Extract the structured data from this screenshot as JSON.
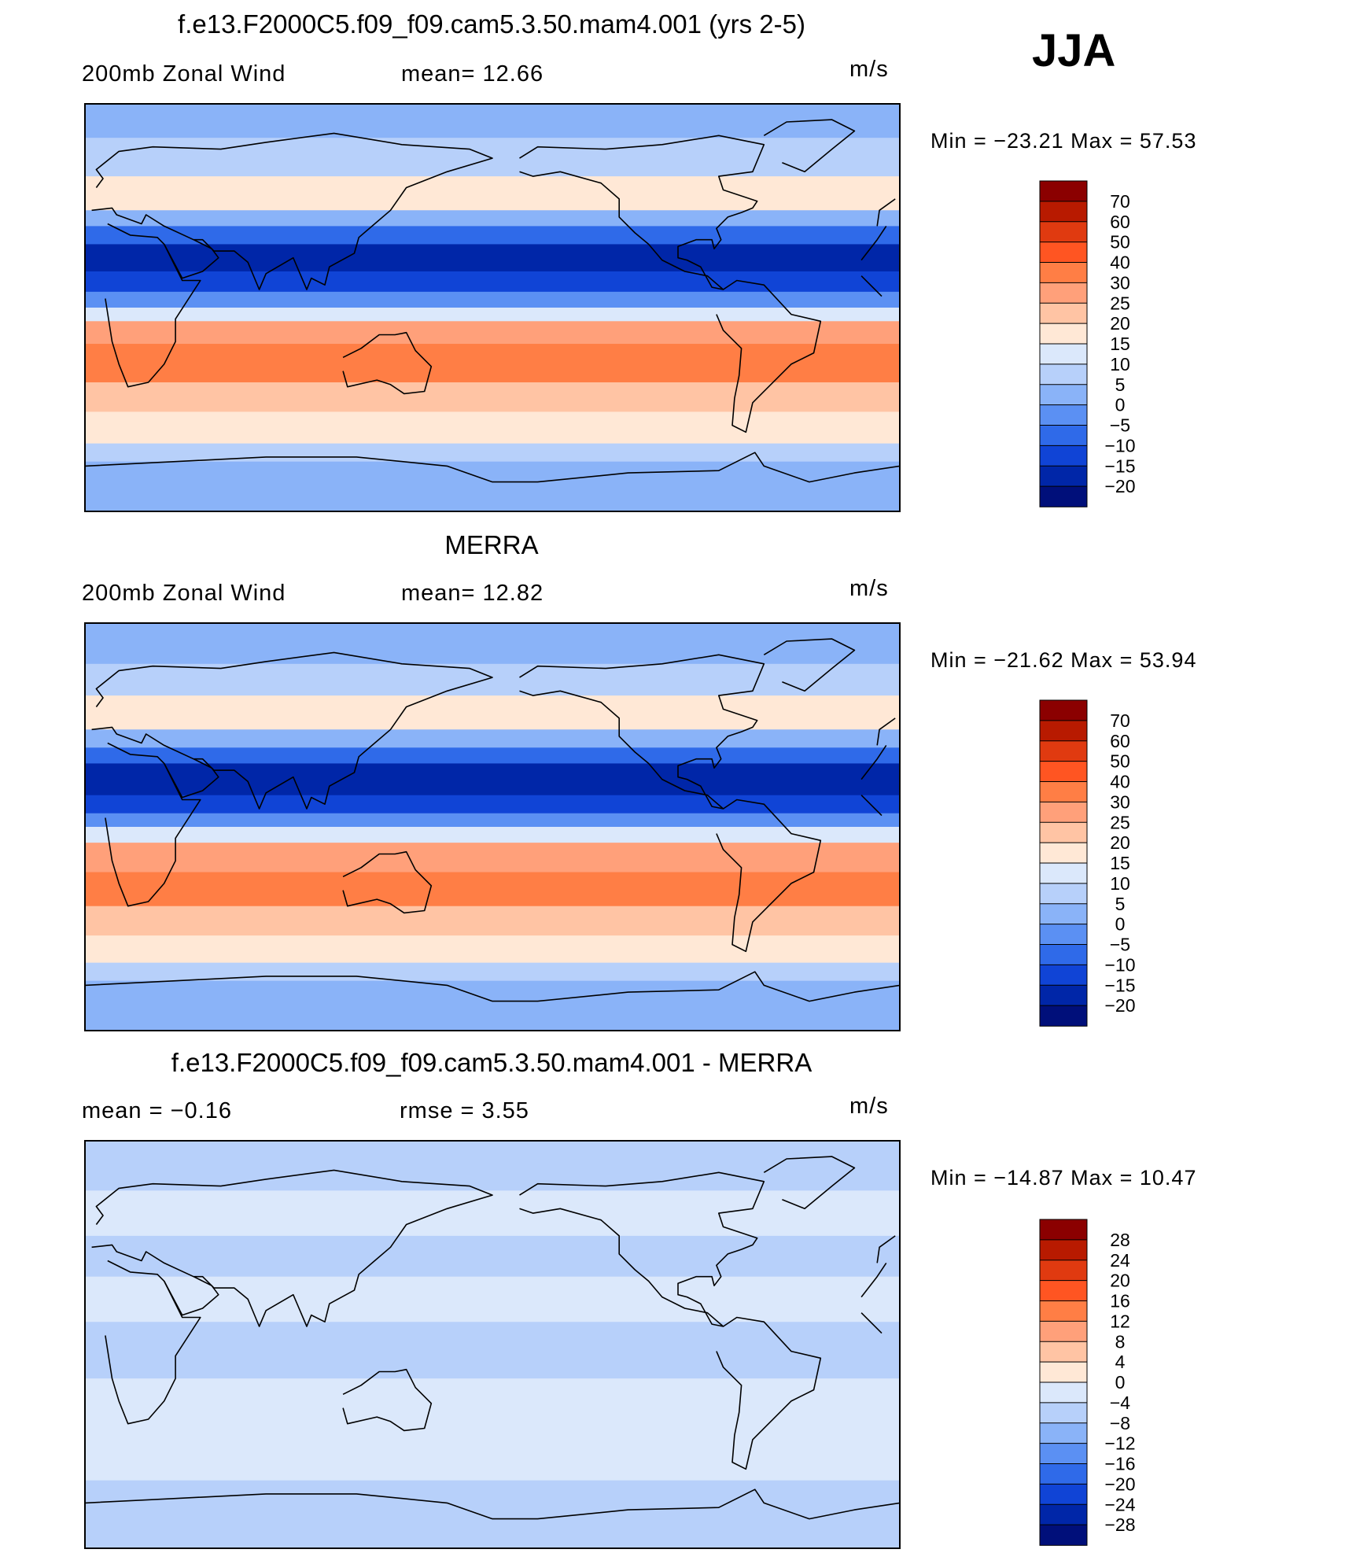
{
  "season": "JJA",
  "panels": [
    {
      "id": "model",
      "title": "f.e13.F2000C5.f09_f09.cam5.3.50.mam4.001 (yrs 2-5)",
      "left_label": "200mb  Zonal  Wind",
      "mid_label": "mean=   12.66",
      "units": "m/s",
      "minmax": "Min  =  −23.21  Max  =    57.53",
      "colorbar": {
        "labels": [
          "70",
          "60",
          "50",
          "40",
          "30",
          "25",
          "20",
          "15",
          "10",
          "5",
          "0",
          "−5",
          "−10",
          "−15",
          "−20"
        ],
        "colors": [
          "#8b0000",
          "#b81a00",
          "#e03a10",
          "#ff5522",
          "#ff7e45",
          "#ffa07a",
          "#ffc4a4",
          "#ffe8d6",
          "#dbe8fb",
          "#b7d0fa",
          "#8ab3f8",
          "#5b90f3",
          "#2f6ae9",
          "#1044d6",
          "#0026a8",
          "#000f7a"
        ]
      },
      "bands": [
        {
          "lat_top": 90,
          "lat_bottom": 75,
          "level": "5"
        },
        {
          "lat_top": 75,
          "lat_bottom": 58,
          "level": "10"
        },
        {
          "lat_top": 58,
          "lat_bottom": 43,
          "level": "20"
        },
        {
          "lat_top": 43,
          "lat_bottom": 36,
          "level": "5"
        },
        {
          "lat_top": 36,
          "lat_bottom": 28,
          "level": "-5"
        },
        {
          "lat_top": 28,
          "lat_bottom": 16,
          "level": "-15"
        },
        {
          "lat_top": 16,
          "lat_bottom": 7,
          "level": "-10"
        },
        {
          "lat_top": 7,
          "lat_bottom": 0,
          "level": "0"
        },
        {
          "lat_top": 0,
          "lat_bottom": -6,
          "level": "15"
        },
        {
          "lat_top": -6,
          "lat_bottom": -16,
          "level": "30"
        },
        {
          "lat_top": -16,
          "lat_bottom": -33,
          "level": "40"
        },
        {
          "lat_top": -33,
          "lat_bottom": -46,
          "level": "25"
        },
        {
          "lat_top": -46,
          "lat_bottom": -60,
          "level": "20"
        },
        {
          "lat_top": -60,
          "lat_bottom": -68,
          "level": "10"
        },
        {
          "lat_top": -68,
          "lat_bottom": -90,
          "level": "5"
        }
      ]
    },
    {
      "id": "obs",
      "title": "MERRA",
      "left_label": "200mb  Zonal  Wind",
      "mid_label": "mean=   12.82",
      "units": "m/s",
      "minmax": "Min  =  −21.62  Max  =    53.94",
      "colorbar": {
        "labels": [
          "70",
          "60",
          "50",
          "40",
          "30",
          "25",
          "20",
          "15",
          "10",
          "5",
          "0",
          "−5",
          "−10",
          "−15",
          "−20"
        ],
        "colors": [
          "#8b0000",
          "#b81a00",
          "#e03a10",
          "#ff5522",
          "#ff7e45",
          "#ffa07a",
          "#ffc4a4",
          "#ffe8d6",
          "#dbe8fb",
          "#b7d0fa",
          "#8ab3f8",
          "#5b90f3",
          "#2f6ae9",
          "#1044d6",
          "#0026a8",
          "#000f7a"
        ]
      },
      "bands": [
        {
          "lat_top": 90,
          "lat_bottom": 72,
          "level": "5"
        },
        {
          "lat_top": 72,
          "lat_bottom": 58,
          "level": "10"
        },
        {
          "lat_top": 58,
          "lat_bottom": 43,
          "level": "20"
        },
        {
          "lat_top": 43,
          "lat_bottom": 35,
          "level": "5"
        },
        {
          "lat_top": 35,
          "lat_bottom": 28,
          "level": "-5"
        },
        {
          "lat_top": 28,
          "lat_bottom": 14,
          "level": "-15"
        },
        {
          "lat_top": 14,
          "lat_bottom": 6,
          "level": "-10"
        },
        {
          "lat_top": 6,
          "lat_bottom": 0,
          "level": "0"
        },
        {
          "lat_top": 0,
          "lat_bottom": -7,
          "level": "15"
        },
        {
          "lat_top": -7,
          "lat_bottom": -20,
          "level": "30"
        },
        {
          "lat_top": -20,
          "lat_bottom": -35,
          "level": "40"
        },
        {
          "lat_top": -35,
          "lat_bottom": -48,
          "level": "25"
        },
        {
          "lat_top": -48,
          "lat_bottom": -60,
          "level": "20"
        },
        {
          "lat_top": -60,
          "lat_bottom": -68,
          "level": "10"
        },
        {
          "lat_top": -68,
          "lat_bottom": -90,
          "level": "5"
        }
      ]
    },
    {
      "id": "diff",
      "title": "f.e13.F2000C5.f09_f09.cam5.3.50.mam4.001 - MERRA",
      "left_label": "mean  =    −0.16",
      "mid_label": "rmse  =     3.55",
      "units": "m/s",
      "minmax": "Min  =  −14.87  Max  =    10.47",
      "colorbar": {
        "labels": [
          "28",
          "24",
          "20",
          "16",
          "12",
          "8",
          "4",
          "0",
          "−4",
          "−8",
          "−12",
          "−16",
          "−20",
          "−24",
          "−28"
        ],
        "colors": [
          "#8b0000",
          "#b81a00",
          "#e03a10",
          "#ff5522",
          "#ff7e45",
          "#ffa07a",
          "#ffc4a4",
          "#ffe8d6",
          "#dbe8fb",
          "#b7d0fa",
          "#8ab3f8",
          "#5b90f3",
          "#2f6ae9",
          "#1044d6",
          "#0026a8",
          "#000f7a"
        ]
      },
      "bands": [
        {
          "lat_top": 90,
          "lat_bottom": 68,
          "level": "-4"
        },
        {
          "lat_top": 68,
          "lat_bottom": 48,
          "level": "0"
        },
        {
          "lat_top": 48,
          "lat_bottom": 30,
          "level": "-4"
        },
        {
          "lat_top": 30,
          "lat_bottom": 10,
          "level": "0"
        },
        {
          "lat_top": 10,
          "lat_bottom": -15,
          "level": "-4"
        },
        {
          "lat_top": -15,
          "lat_bottom": -40,
          "level": "0"
        },
        {
          "lat_top": -40,
          "lat_bottom": -60,
          "level": "0"
        },
        {
          "lat_top": -60,
          "lat_bottom": -90,
          "level": "-4"
        }
      ]
    }
  ]
}
